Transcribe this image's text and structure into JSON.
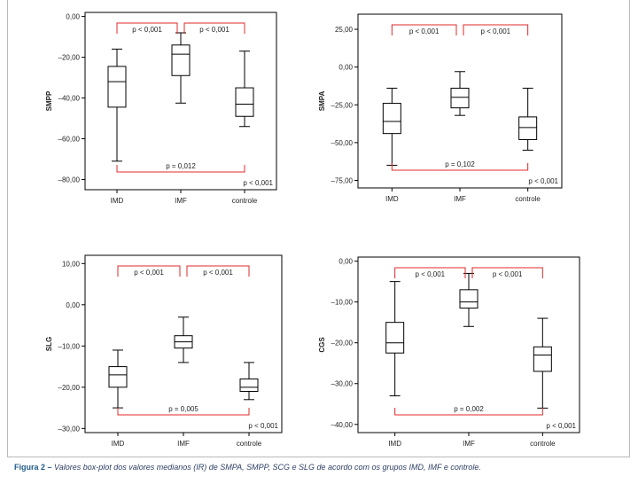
{
  "caption": {
    "label": "Figura 2 –",
    "text": "Valores box-plot dos valores medianos (IR) de SMPA, SMPP, SCG e SLG de acordo com os grupos IMD, IMF e controle."
  },
  "colors": {
    "bracket": "#e0282a",
    "axis": "#000000",
    "caption_label": "#1f5a8a",
    "caption_text": "#2d3e63"
  },
  "chart_data": [
    {
      "type": "box",
      "ylabel": "SMPP",
      "categories": [
        "IMD",
        "IMF",
        "controle"
      ],
      "ylim": [
        -85,
        2
      ],
      "yticks": [
        0,
        -20,
        -40,
        -60,
        -80
      ],
      "yticklabels": [
        "0,00",
        "–20,00",
        "–40,00",
        "–60,00",
        "–80,00"
      ],
      "boxes": [
        {
          "group": "IMD",
          "min": -71,
          "q1": -44.5,
          "median": -32,
          "q3": -24.5,
          "max": -16
        },
        {
          "group": "IMF",
          "min": -42.5,
          "q1": -29,
          "median": -18.5,
          "q3": -14,
          "max": -8
        },
        {
          "group": "controle",
          "min": -54,
          "q1": -49,
          "median": -43,
          "q3": -35,
          "max": -17
        }
      ],
      "comparisons": [
        {
          "groups": [
            "IMD",
            "IMF"
          ],
          "label": "p < 0,001",
          "side": "top"
        },
        {
          "groups": [
            "IMF",
            "controle"
          ],
          "label": "p < 0,001",
          "side": "top"
        },
        {
          "groups": [
            "IMD",
            "controle"
          ],
          "label": "p = 0,012",
          "side": "bottom"
        }
      ],
      "overall_p": "p < 0,001"
    },
    {
      "type": "box",
      "ylabel": "SMPA",
      "categories": [
        "IMD",
        "IMF",
        "controle"
      ],
      "ylim": [
        -80,
        35
      ],
      "yticks": [
        25,
        0,
        -25,
        -50,
        -75
      ],
      "yticklabels": [
        "25,00",
        "0,00",
        "–25,00",
        "–50,00",
        "–75,00"
      ],
      "boxes": [
        {
          "group": "IMD",
          "min": -65,
          "q1": -44,
          "median": -36,
          "q3": -24,
          "max": -14
        },
        {
          "group": "IMF",
          "min": -32,
          "q1": -27,
          "median": -20,
          "q3": -14,
          "max": -3
        },
        {
          "group": "controle",
          "min": -55,
          "q1": -48,
          "median": -40,
          "q3": -33,
          "max": -14
        }
      ],
      "comparisons": [
        {
          "groups": [
            "IMD",
            "IMF"
          ],
          "label": "p < 0,001",
          "side": "top"
        },
        {
          "groups": [
            "IMF",
            "controle"
          ],
          "label": "p < 0,001",
          "side": "top"
        },
        {
          "groups": [
            "IMD",
            "controle"
          ],
          "label": "p = 0,102",
          "side": "bottom"
        }
      ],
      "overall_p": "p < 0,001"
    },
    {
      "type": "box",
      "ylabel": "SLG",
      "categories": [
        "IMD",
        "IMF",
        "controle"
      ],
      "ylim": [
        -31,
        12
      ],
      "yticks": [
        10,
        0,
        -10,
        -20,
        -30
      ],
      "yticklabels": [
        "10,00",
        "0,00",
        "–10,00",
        "–20,00",
        "–30,00"
      ],
      "boxes": [
        {
          "group": "IMD",
          "min": -25,
          "q1": -20,
          "median": -17,
          "q3": -15,
          "max": -11
        },
        {
          "group": "IMF",
          "min": -14,
          "q1": -10.5,
          "median": -9,
          "q3": -7.5,
          "max": -3
        },
        {
          "group": "controle",
          "min": -23,
          "q1": -21,
          "median": -20,
          "q3": -18,
          "max": -14
        }
      ],
      "comparisons": [
        {
          "groups": [
            "IMD",
            "IMF"
          ],
          "label": "p < 0,001",
          "side": "top"
        },
        {
          "groups": [
            "IMF",
            "controle"
          ],
          "label": "p < 0,001",
          "side": "top"
        },
        {
          "groups": [
            "IMD",
            "controle"
          ],
          "label": "p = 0,005",
          "side": "bottom"
        }
      ],
      "overall_p": "p < 0,001"
    },
    {
      "type": "box",
      "ylabel": "CGS",
      "categories": [
        "IMD",
        "IMF",
        "controle"
      ],
      "ylim": [
        -42,
        1
      ],
      "yticks": [
        0,
        -10,
        -20,
        -30,
        -40
      ],
      "yticklabels": [
        "0,00",
        "–10,00",
        "–20,00",
        "–30,00",
        "–40,00"
      ],
      "boxes": [
        {
          "group": "IMD",
          "min": -33,
          "q1": -22.5,
          "median": -20,
          "q3": -15,
          "max": -5
        },
        {
          "group": "IMF",
          "min": -16,
          "q1": -11.5,
          "median": -10,
          "q3": -7,
          "max": -3
        },
        {
          "group": "controle",
          "min": -36,
          "q1": -27,
          "median": -23,
          "q3": -21,
          "max": -14
        }
      ],
      "comparisons": [
        {
          "groups": [
            "IMD",
            "IMF"
          ],
          "label": "p < 0,001",
          "side": "top"
        },
        {
          "groups": [
            "IMF",
            "controle"
          ],
          "label": "p < 0,001",
          "side": "top"
        },
        {
          "groups": [
            "IMD",
            "controle"
          ],
          "label": "p = 0,002",
          "side": "bottom"
        }
      ],
      "overall_p": "p < 0,001"
    }
  ]
}
